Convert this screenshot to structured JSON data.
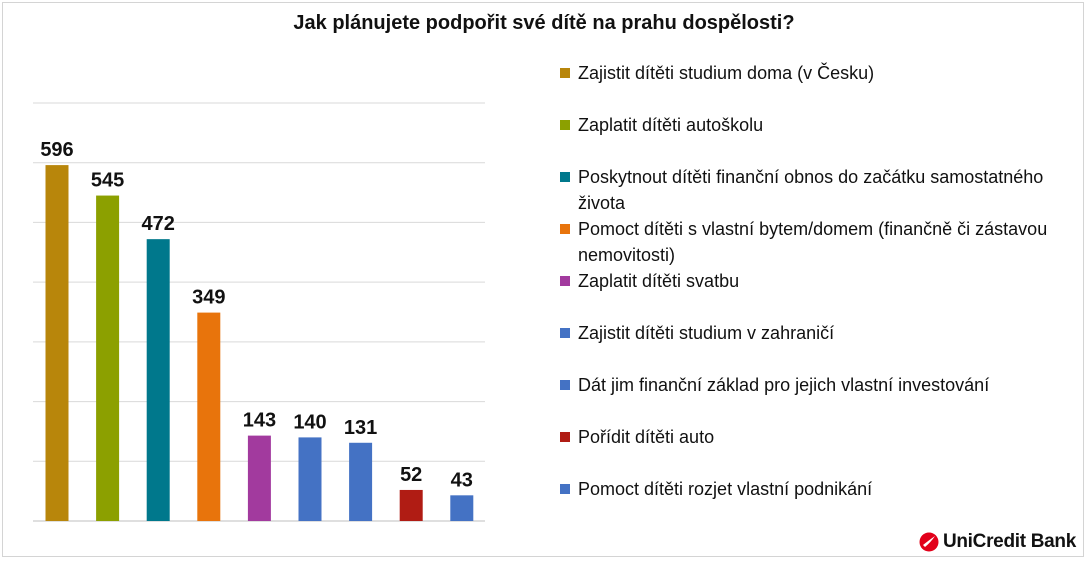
{
  "chart_data": {
    "type": "bar",
    "title": "Jak plánujete podpořit své dítě na prahu dospělosti?",
    "categories": [
      "Zajistit dítěti studium doma (v Česku)",
      "Zaplatit dítěti autoškolu",
      "Poskytnout dítěti finanční obnos do začátku samostatného života",
      "Pomoct dítěti s vlastní bytem/domem (finančně či zástavou nemovitosti)",
      "Zaplatit dítěti svatbu",
      "Zajistit dítěti studium v zahraničí",
      "Dát jim finanční základ pro jejich vlastní investování",
      "Pořídit dítěti auto",
      "Pomoct dítěti rozjet vlastní podnikání"
    ],
    "values": [
      596,
      545,
      472,
      349,
      143,
      140,
      131,
      52,
      43
    ],
    "colors": [
      "#b8860b",
      "#8ca000",
      "#00788c",
      "#e8740c",
      "#a23a9e",
      "#4472c4",
      "#4472c4",
      "#b01c14",
      "#4472c4"
    ],
    "ylim": [
      0,
      700
    ],
    "gridlines": true,
    "legend_position": "right"
  },
  "brand": {
    "name": "UniCredit Bank",
    "color": "#e2001a"
  }
}
